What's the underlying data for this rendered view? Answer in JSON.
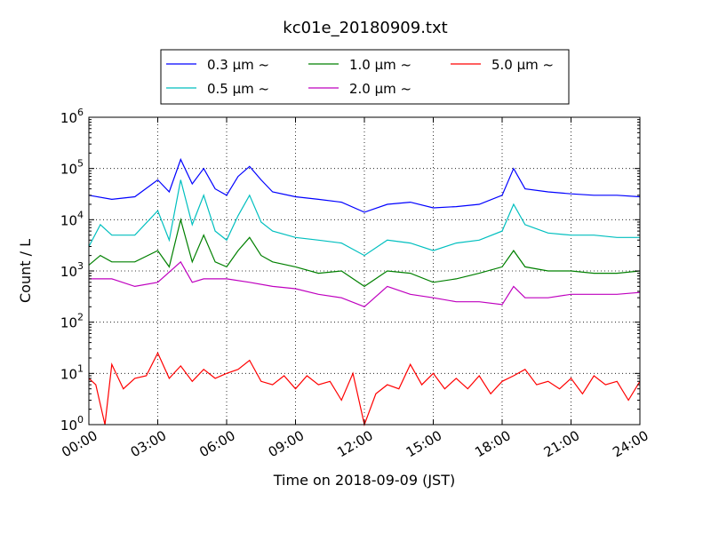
{
  "chart_data": {
    "type": "line",
    "title": "kc01e_20180909.txt",
    "xlabel": "Time on 2018-09-09 (JST)",
    "ylabel": "Count / L",
    "x_ticks": [
      "00:00",
      "03:00",
      "06:00",
      "09:00",
      "12:00",
      "15:00",
      "18:00",
      "21:00",
      "24:00"
    ],
    "y_ticks": [
      {
        "base": "10",
        "exp": "0",
        "value": 1
      },
      {
        "base": "10",
        "exp": "1",
        "value": 10
      },
      {
        "base": "10",
        "exp": "2",
        "value": 100
      },
      {
        "base": "10",
        "exp": "3",
        "value": 1000
      },
      {
        "base": "10",
        "exp": "4",
        "value": 10000
      },
      {
        "base": "10",
        "exp": "5",
        "value": 100000
      },
      {
        "base": "10",
        "exp": "6",
        "value": 1000000
      }
    ],
    "x_range_hours": [
      0,
      24
    ],
    "ylim": [
      1,
      1000000
    ],
    "yscale": "log",
    "grid": true,
    "legend_position": "top-center",
    "series": [
      {
        "name": "0.3 μm ~",
        "color": "#0000ff",
        "x": [
          0,
          1,
          2,
          3,
          3.5,
          4,
          4.5,
          5,
          5.5,
          6,
          6.5,
          7,
          7.5,
          8,
          9,
          10,
          11,
          12,
          13,
          14,
          15,
          16,
          17,
          18,
          18.5,
          19,
          20,
          21,
          22,
          23,
          24
        ],
        "values": [
          30000,
          25000,
          28000,
          60000,
          35000,
          150000,
          50000,
          100000,
          40000,
          30000,
          70000,
          110000,
          60000,
          35000,
          28000,
          25000,
          22000,
          14000,
          20000,
          22000,
          17000,
          18000,
          20000,
          30000,
          100000,
          40000,
          35000,
          32000,
          30000,
          30000,
          28000
        ]
      },
      {
        "name": "0.5 μm ~",
        "color": "#00bfbf",
        "x": [
          0,
          0.5,
          1,
          2,
          3,
          3.5,
          4,
          4.5,
          5,
          5.5,
          6,
          6.5,
          7,
          7.5,
          8,
          9,
          10,
          11,
          12,
          13,
          14,
          15,
          16,
          17,
          18,
          18.5,
          19,
          20,
          21,
          22,
          23,
          24
        ],
        "values": [
          3000,
          8000,
          5000,
          5000,
          15000,
          4000,
          60000,
          8000,
          30000,
          6000,
          4000,
          12000,
          30000,
          9000,
          6000,
          4500,
          4000,
          3500,
          2000,
          4000,
          3500,
          2500,
          3500,
          4000,
          6000,
          20000,
          8000,
          5500,
          5000,
          5000,
          4500,
          4500
        ]
      },
      {
        "name": "1.0 μm ~",
        "color": "#008000",
        "x": [
          0,
          0.5,
          1,
          2,
          3,
          3.5,
          4,
          4.5,
          5,
          5.5,
          6,
          6.5,
          7,
          7.5,
          8,
          9,
          10,
          11,
          12,
          13,
          14,
          15,
          16,
          17,
          18,
          18.5,
          19,
          20,
          21,
          22,
          23,
          24
        ],
        "values": [
          1300,
          2000,
          1500,
          1500,
          2500,
          1200,
          10000,
          1500,
          5000,
          1500,
          1200,
          2500,
          4500,
          2000,
          1500,
          1200,
          900,
          1000,
          500,
          1000,
          900,
          600,
          700,
          900,
          1200,
          2500,
          1200,
          1000,
          1000,
          900,
          900,
          1000
        ]
      },
      {
        "name": "2.0 μm ~",
        "color": "#bf00bf",
        "x": [
          0,
          1,
          2,
          3,
          4,
          4.5,
          5,
          6,
          7,
          8,
          9,
          10,
          11,
          12,
          13,
          14,
          15,
          16,
          17,
          18,
          18.5,
          19,
          20,
          21,
          22,
          23,
          24
        ],
        "values": [
          700,
          700,
          500,
          600,
          1500,
          600,
          700,
          700,
          600,
          500,
          450,
          350,
          300,
          200,
          500,
          350,
          300,
          250,
          250,
          220,
          500,
          300,
          300,
          350,
          350,
          350,
          380
        ]
      },
      {
        "name": "5.0 μm ~",
        "color": "#ff0000",
        "x": [
          0,
          0.3,
          0.7,
          1,
          1.5,
          2,
          2.5,
          3,
          3.5,
          4,
          4.5,
          5,
          5.5,
          6,
          6.5,
          7,
          7.5,
          8,
          8.5,
          9,
          9.5,
          10,
          10.5,
          11,
          11.5,
          12,
          12.5,
          13,
          13.5,
          14,
          14.5,
          15,
          15.5,
          16,
          16.5,
          17,
          17.5,
          18,
          18.5,
          19,
          19.5,
          20,
          20.5,
          21,
          21.5,
          22,
          22.5,
          23,
          23.5,
          24
        ],
        "values": [
          8,
          6,
          1,
          15,
          5,
          8,
          9,
          25,
          8,
          14,
          7,
          12,
          8,
          10,
          12,
          18,
          7,
          6,
          9,
          5,
          9,
          6,
          7,
          3,
          10,
          1,
          4,
          6,
          5,
          15,
          6,
          10,
          5,
          8,
          5,
          9,
          4,
          7,
          9,
          12,
          6,
          7,
          5,
          8,
          4,
          9,
          6,
          7,
          3,
          7
        ]
      }
    ]
  }
}
